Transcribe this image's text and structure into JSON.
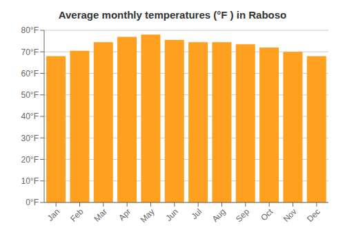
{
  "chart_data": {
    "type": "bar",
    "title": "Average monthly temperatures (°F ) in Raboso",
    "categories": [
      "Jan",
      "Feb",
      "Mar",
      "Apr",
      "May",
      "Jun",
      "Jul",
      "Aug",
      "Sep",
      "Oct",
      "Nov",
      "Dec"
    ],
    "values": [
      68,
      70.5,
      74.5,
      77,
      78,
      75.5,
      74.5,
      74.5,
      73.5,
      72,
      70,
      68
    ],
    "color": "#FFA020",
    "ylim": [
      0,
      80
    ],
    "yticks": [
      {
        "value": 0,
        "label": "0°F"
      },
      {
        "value": 10,
        "label": "10°F"
      },
      {
        "value": 20,
        "label": "20°F"
      },
      {
        "value": 30,
        "label": "30°F"
      },
      {
        "value": 40,
        "label": "40°F"
      },
      {
        "value": 50,
        "label": "50°F"
      },
      {
        "value": 60,
        "label": "60°F"
      },
      {
        "value": 70,
        "label": "70°F"
      },
      {
        "value": 80,
        "label": "80°F"
      }
    ],
    "grid": true
  }
}
